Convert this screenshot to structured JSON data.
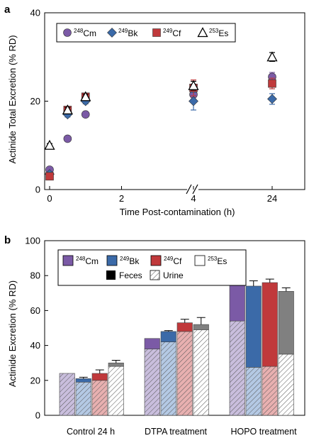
{
  "panel_a": {
    "label": "a",
    "ylabel": "Actinide Total Excretion (% RD)",
    "xlabel": "Time Post-contamination (h)",
    "y_ticks": [
      "0",
      "20",
      "40"
    ],
    "x_ticks": [
      "0",
      "2",
      "4",
      "24"
    ],
    "legend": [
      {
        "sup": "248",
        "el": "Cm"
      },
      {
        "sup": "249",
        "el": "Bk"
      },
      {
        "sup": "249",
        "el": "Cf"
      },
      {
        "sup": "253",
        "el": "Es"
      }
    ]
  },
  "panel_b": {
    "label": "b",
    "ylabel": "Actinide Excretion (% RD)",
    "y_ticks": [
      "0",
      "20",
      "40",
      "60",
      "80",
      "100"
    ],
    "categories": [
      "Control 24 h",
      "DTPA treatment",
      "HOPO treatment"
    ],
    "legend": [
      {
        "sup": "248",
        "el": "Cm"
      },
      {
        "sup": "249",
        "el": "Bk"
      },
      {
        "sup": "249",
        "el": "Cf"
      },
      {
        "sup": "253",
        "el": "Es"
      }
    ],
    "legend_feces": "Feces",
    "legend_urine": "Urine"
  },
  "colors": {
    "Cm": "#7b5aa6",
    "Bk": "#3b6aa8",
    "Cf": "#c0393b",
    "Es_feces": "#808080",
    "Cm_urine": "#c9bedd",
    "Bk_urine": "#b4c9e4",
    "Cf_urine": "#e8b0b0",
    "Es_urine": "#ffffff"
  },
  "chart_data": [
    {
      "type": "scatter",
      "title": "",
      "xlabel": "Time Post-contamination (h)",
      "ylabel": "Actinide Total Excretion (% RD)",
      "ylim": [
        0,
        40
      ],
      "x_axis_break": "between 4 and 24",
      "x_ticks": [
        0,
        2,
        4,
        24
      ],
      "series": [
        {
          "name": "248Cm",
          "marker": "circle",
          "color": "#7b5aa6",
          "x": [
            0,
            0.5,
            1,
            4,
            24
          ],
          "y": [
            4.5,
            11.5,
            17,
            21.5,
            25.5
          ],
          "err": [
            0.5,
            0.5,
            0.6,
            1.0,
            1.0
          ]
        },
        {
          "name": "249Bk",
          "marker": "diamond",
          "color": "#3b6aa8",
          "x": [
            0,
            0.5,
            1,
            4,
            24
          ],
          "y": [
            3.5,
            17,
            20,
            20,
            20.5
          ],
          "err": [
            0.5,
            0.6,
            0.6,
            2.0,
            1.2
          ]
        },
        {
          "name": "249Cf",
          "marker": "square",
          "color": "#c0393b",
          "x": [
            0,
            0.5,
            1,
            4,
            24
          ],
          "y": [
            3,
            18,
            21,
            23,
            24
          ],
          "err": [
            0.4,
            0.6,
            0.6,
            1.8,
            1.2
          ]
        },
        {
          "name": "253Es",
          "marker": "triangle",
          "color": "#000000",
          "x": [
            0,
            0.5,
            1,
            4,
            24
          ],
          "y": [
            10,
            18,
            21,
            23.5,
            30
          ],
          "err": [
            0.4,
            0.6,
            0.6,
            1.0,
            1.0
          ]
        }
      ]
    },
    {
      "type": "bar",
      "stacked": true,
      "title": "",
      "xlabel": "",
      "ylabel": "Actinide Excretion (% RD)",
      "ylim": [
        0,
        100
      ],
      "categories": [
        "Control 24 h",
        "DTPA treatment",
        "HOPO treatment"
      ],
      "series": [
        {
          "name": "248Cm",
          "urine": [
            24,
            38,
            54
          ],
          "feces": [
            0,
            6,
            28
          ],
          "total": [
            24,
            44,
            82
          ],
          "err": [
            0,
            0,
            0.6
          ]
        },
        {
          "name": "249Bk",
          "urine": [
            19,
            42,
            27.5
          ],
          "feces": [
            2,
            6,
            46.5
          ],
          "total": [
            21,
            48,
            74
          ],
          "err": [
            0.8,
            0.5,
            3
          ]
        },
        {
          "name": "249Cf",
          "urine": [
            20,
            48,
            28
          ],
          "feces": [
            4,
            5,
            48
          ],
          "total": [
            24,
            53,
            76
          ],
          "err": [
            2,
            2,
            2
          ]
        },
        {
          "name": "253Es",
          "urine": [
            28,
            49,
            35
          ],
          "feces": [
            2,
            3,
            36
          ],
          "total": [
            30,
            52,
            71
          ],
          "err": [
            1.5,
            4,
            2
          ]
        }
      ]
    }
  ]
}
